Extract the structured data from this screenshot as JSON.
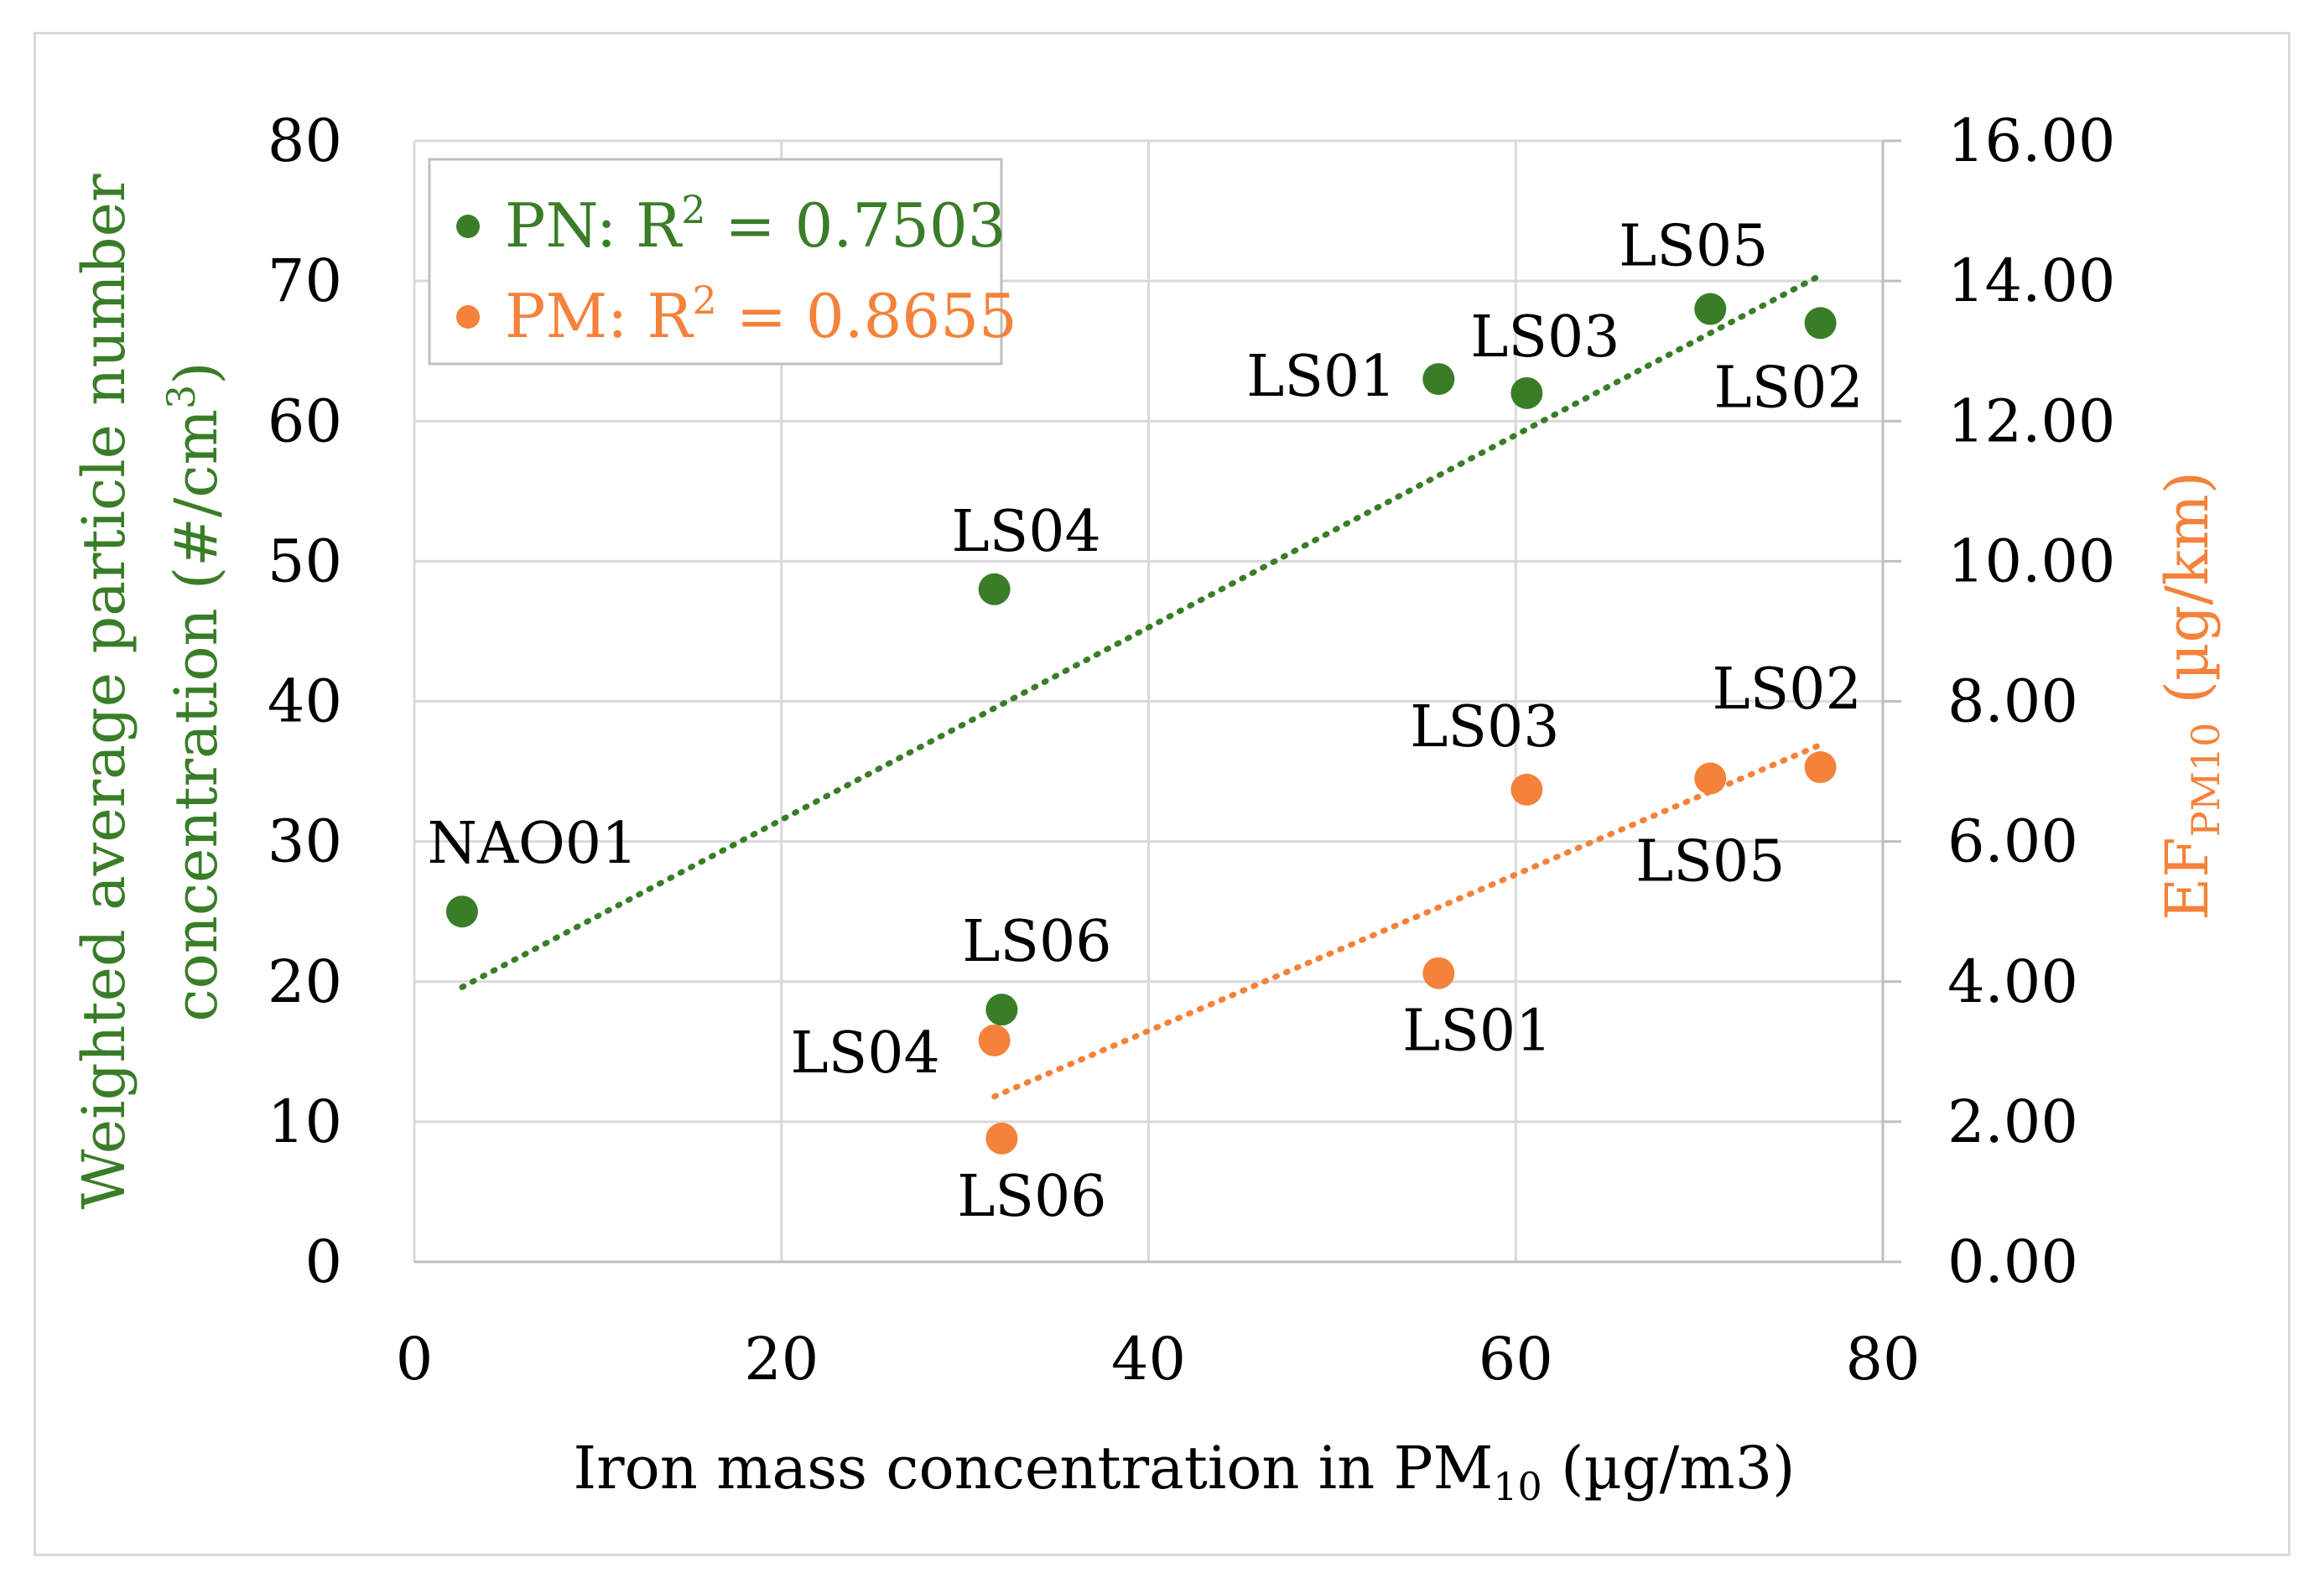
{
  "chart_data": {
    "type": "scatter",
    "xlabel": "Iron mass concentration in PM",
    "xlabel_sub": "10",
    "xlabel_unit": " (µg/m3)",
    "ylabel_left_line1": "Weighted average particle number",
    "ylabel_left_line2": "concentration (#/cm",
    "ylabel_left_sup": "3",
    "ylabel_left_end": ")",
    "ylabel_right_main": "EF",
    "ylabel_right_sub": "PM10",
    "ylabel_right_unit": " (µg/km)",
    "xlim": [
      0,
      80
    ],
    "ylim_left": [
      0,
      80
    ],
    "ylim_right": [
      0,
      16
    ],
    "x_ticks": [
      0,
      20,
      40,
      60,
      80
    ],
    "x_tick_labels": [
      "0",
      "20",
      "40",
      "60",
      "80"
    ],
    "y_left_ticks": [
      0,
      10,
      20,
      30,
      40,
      50,
      60,
      70,
      80
    ],
    "y_left_tick_labels": [
      "0",
      "10",
      "20",
      "30",
      "40",
      "50",
      "60",
      "70",
      "80"
    ],
    "y_right_ticks": [
      0,
      2,
      4,
      6,
      8,
      10,
      12,
      14,
      16
    ],
    "y_right_tick_labels": [
      "0.00",
      "2.00",
      "4.00",
      "6.00",
      "8.00",
      "10.00",
      "12.00",
      "14.00",
      "16.00"
    ],
    "grid": true,
    "legend_position": "top-left",
    "series": [
      {
        "name": "PN",
        "legend_prefix": "PN: R",
        "legend_sup": "2",
        "legend_value": " = 0.7503",
        "r2": 0.7503,
        "color": "#3a7d28",
        "axis": "left",
        "points": [
          {
            "label": "NAO01",
            "x": 2.6,
            "y": 25
          },
          {
            "label": "LS04",
            "x": 31.6,
            "y": 48
          },
          {
            "label": "LS06",
            "x": 32.0,
            "y": 18
          },
          {
            "label": "LS01",
            "x": 55.8,
            "y": 63
          },
          {
            "label": "LS03",
            "x": 60.6,
            "y": 62
          },
          {
            "label": "LS05",
            "x": 70.6,
            "y": 68
          },
          {
            "label": "LS02",
            "x": 76.6,
            "y": 67
          }
        ],
        "trendline": {
          "x0": 2.6,
          "y0": 19.6,
          "x1": 76.6,
          "y1": 70.4
        }
      },
      {
        "name": "PM",
        "legend_prefix": "PM: R",
        "legend_sup": "2",
        "legend_value": " = 0.8655",
        "r2": 0.8655,
        "color": "#f4823a",
        "axis": "right",
        "points": [
          {
            "label": "LS04",
            "x": 31.6,
            "y": 3.16
          },
          {
            "label": "LS06",
            "x": 32.0,
            "y": 1.76
          },
          {
            "label": "LS01",
            "x": 55.8,
            "y": 4.12
          },
          {
            "label": "LS03",
            "x": 60.6,
            "y": 6.74
          },
          {
            "label": "LS05",
            "x": 70.6,
            "y": 6.9
          },
          {
            "label": "LS02",
            "x": 76.6,
            "y": 7.06
          }
        ],
        "trendline": {
          "x0": 31.6,
          "y0": 2.36,
          "x1": 76.6,
          "y1": 7.38
        }
      }
    ]
  }
}
